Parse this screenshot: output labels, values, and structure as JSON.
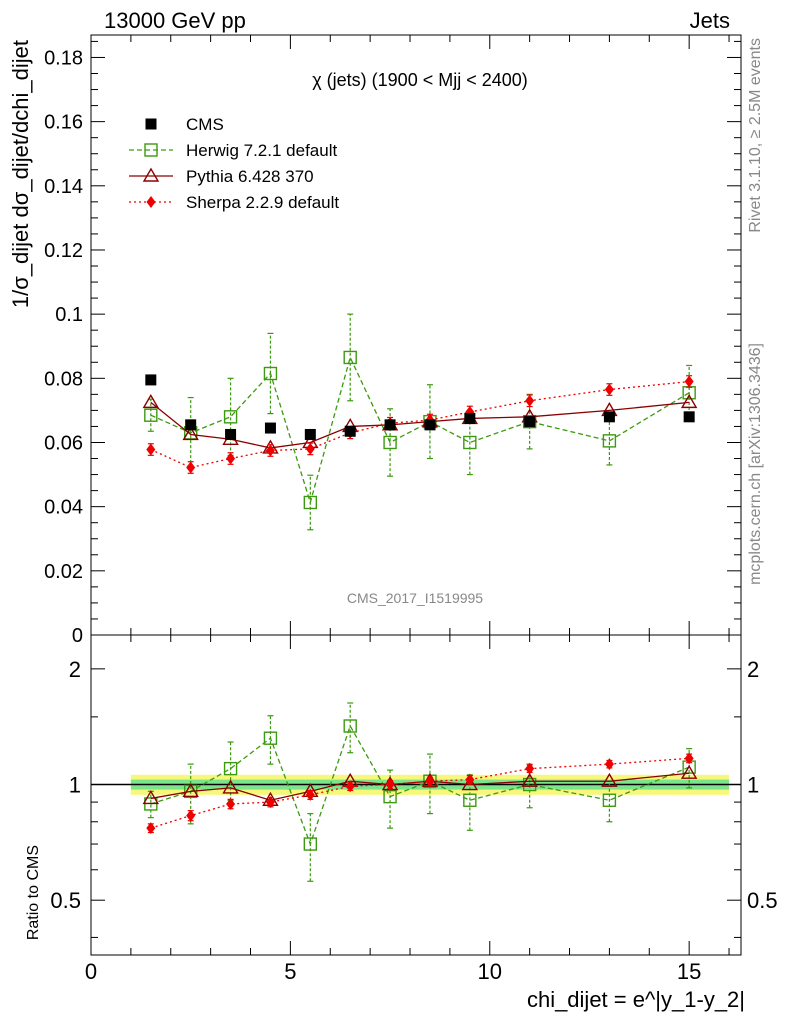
{
  "header": {
    "left": "13000 GeV pp",
    "right": "Jets"
  },
  "side_labels": {
    "rivet": "Rivet 3.1.10, ≥ 2.5M events",
    "mcplots": "mcplots.cern.ch [arXiv:1306.3436]"
  },
  "chart_data": [
    {
      "type": "scatter",
      "title": "χ (jets) (1900 < Mjj < 2400)",
      "watermark": "CMS_2017_I1519995",
      "ylabel": "1/σ_dijet dσ_dijet/dchi_dijet",
      "ylim": [
        0,
        0.187
      ],
      "xlim": [
        0,
        16.3
      ],
      "yticks": [
        "0",
        "0.02",
        "0.04",
        "0.06",
        "0.08",
        "0.1",
        "0.12",
        "0.14",
        "0.16",
        "0.18"
      ],
      "legend": {
        "placement": "top-left"
      },
      "series": [
        {
          "name": "CMS",
          "color": "#000000",
          "marker": "filled-square",
          "line": "none",
          "x": [
            1.5,
            2.5,
            3.5,
            4.5,
            5.5,
            6.5,
            7.5,
            8.5,
            9.5,
            11,
            13,
            15
          ],
          "y": [
            0.0795,
            0.0655,
            0.0625,
            0.0645,
            0.0625,
            0.0635,
            0.0655,
            0.0655,
            0.0675,
            0.0665,
            0.068,
            0.068
          ]
        },
        {
          "name": "Herwig 7.2.1 default",
          "color": "#3c9a10",
          "marker": "open-square",
          "line": "dashed",
          "x": [
            1.5,
            2.5,
            3.5,
            4.5,
            5.5,
            6.5,
            7.5,
            8.5,
            9.5,
            11,
            13,
            15
          ],
          "y": [
            0.0685,
            0.063,
            0.068,
            0.0815,
            0.0413,
            0.0865,
            0.06,
            0.0665,
            0.06,
            0.0665,
            0.0605,
            0.0755
          ],
          "err": [
            0.005,
            0.011,
            0.012,
            0.0125,
            0.0085,
            0.0135,
            0.0105,
            0.0115,
            0.01,
            0.0085,
            0.0075,
            0.0085
          ]
        },
        {
          "name": "Pythia 6.428 370",
          "color": "#8b0000",
          "marker": "open-triangle",
          "line": "solid",
          "x": [
            1.5,
            2.5,
            3.5,
            4.5,
            5.5,
            6.5,
            7.5,
            8.5,
            9.5,
            11,
            13,
            15
          ],
          "y": [
            0.0725,
            0.0625,
            0.061,
            0.0583,
            0.06,
            0.065,
            0.0655,
            0.0665,
            0.0675,
            0.068,
            0.07,
            0.0725
          ]
        },
        {
          "name": "Sherpa 2.2.9 default",
          "color": "#ee0000",
          "marker": "filled-diamond",
          "line": "dotted",
          "x": [
            1.5,
            2.5,
            3.5,
            4.5,
            5.5,
            6.5,
            7.5,
            8.5,
            9.5,
            11,
            13,
            15
          ],
          "y": [
            0.0578,
            0.0522,
            0.055,
            0.0575,
            0.058,
            0.063,
            0.066,
            0.067,
            0.0695,
            0.073,
            0.0765,
            0.079
          ],
          "err": [
            0.0018,
            0.0018,
            0.0018,
            0.0018,
            0.0018,
            0.0018,
            0.0018,
            0.0018,
            0.0018,
            0.0018,
            0.0018,
            0.0018
          ]
        }
      ]
    },
    {
      "type": "scatter",
      "ylabel": "Ratio to CMS",
      "xlabel": "chi_dijet = e^|y_1-y_2|",
      "ylim": [
        0.36,
        2.45
      ],
      "xlim": [
        0,
        16.3
      ],
      "log_y": true,
      "xticks": [
        "0",
        "5",
        "10",
        "15"
      ],
      "yticks": [
        "0.5",
        "1",
        "2"
      ],
      "band": {
        "x": [
          1,
          16
        ],
        "inner": [
          0.97,
          1.03
        ],
        "outer": [
          0.94,
          1.06
        ],
        "inner_color": "#7ce58c",
        "outer_color": "#f7f77c"
      },
      "series": [
        {
          "name": "Herwig 7.2.1 default",
          "color": "#3c9a10",
          "marker": "open-square",
          "line": "dashed",
          "x": [
            1.5,
            2.5,
            3.5,
            4.5,
            5.5,
            6.5,
            7.5,
            8.5,
            9.5,
            11,
            13,
            15
          ],
          "y": [
            0.89,
            0.96,
            1.1,
            1.32,
            0.7,
            1.42,
            0.93,
            1.02,
            0.91,
            1.0,
            0.91,
            1.11
          ],
          "err": [
            0.07,
            0.17,
            0.19,
            0.19,
            0.14,
            0.21,
            0.16,
            0.18,
            0.15,
            0.13,
            0.11,
            0.13
          ]
        },
        {
          "name": "Pythia 6.428 370",
          "color": "#8b0000",
          "marker": "open-triangle",
          "line": "solid",
          "x": [
            1.5,
            2.5,
            3.5,
            4.5,
            5.5,
            6.5,
            7.5,
            8.5,
            9.5,
            11,
            13,
            15
          ],
          "y": [
            0.92,
            0.96,
            0.98,
            0.91,
            0.96,
            1.02,
            1.0,
            1.02,
            1.0,
            1.02,
            1.02,
            1.07
          ]
        },
        {
          "name": "Sherpa 2.2.9 default",
          "color": "#ee0000",
          "marker": "filled-diamond",
          "line": "dotted",
          "x": [
            1.5,
            2.5,
            3.5,
            4.5,
            5.5,
            6.5,
            7.5,
            8.5,
            9.5,
            11,
            13,
            15
          ],
          "y": [
            0.77,
            0.83,
            0.89,
            0.9,
            0.94,
            0.99,
            1.0,
            1.02,
            1.03,
            1.1,
            1.13,
            1.17
          ],
          "err": [
            0.02,
            0.025,
            0.025,
            0.025,
            0.025,
            0.025,
            0.025,
            0.025,
            0.025,
            0.025,
            0.025,
            0.03
          ]
        }
      ]
    }
  ]
}
